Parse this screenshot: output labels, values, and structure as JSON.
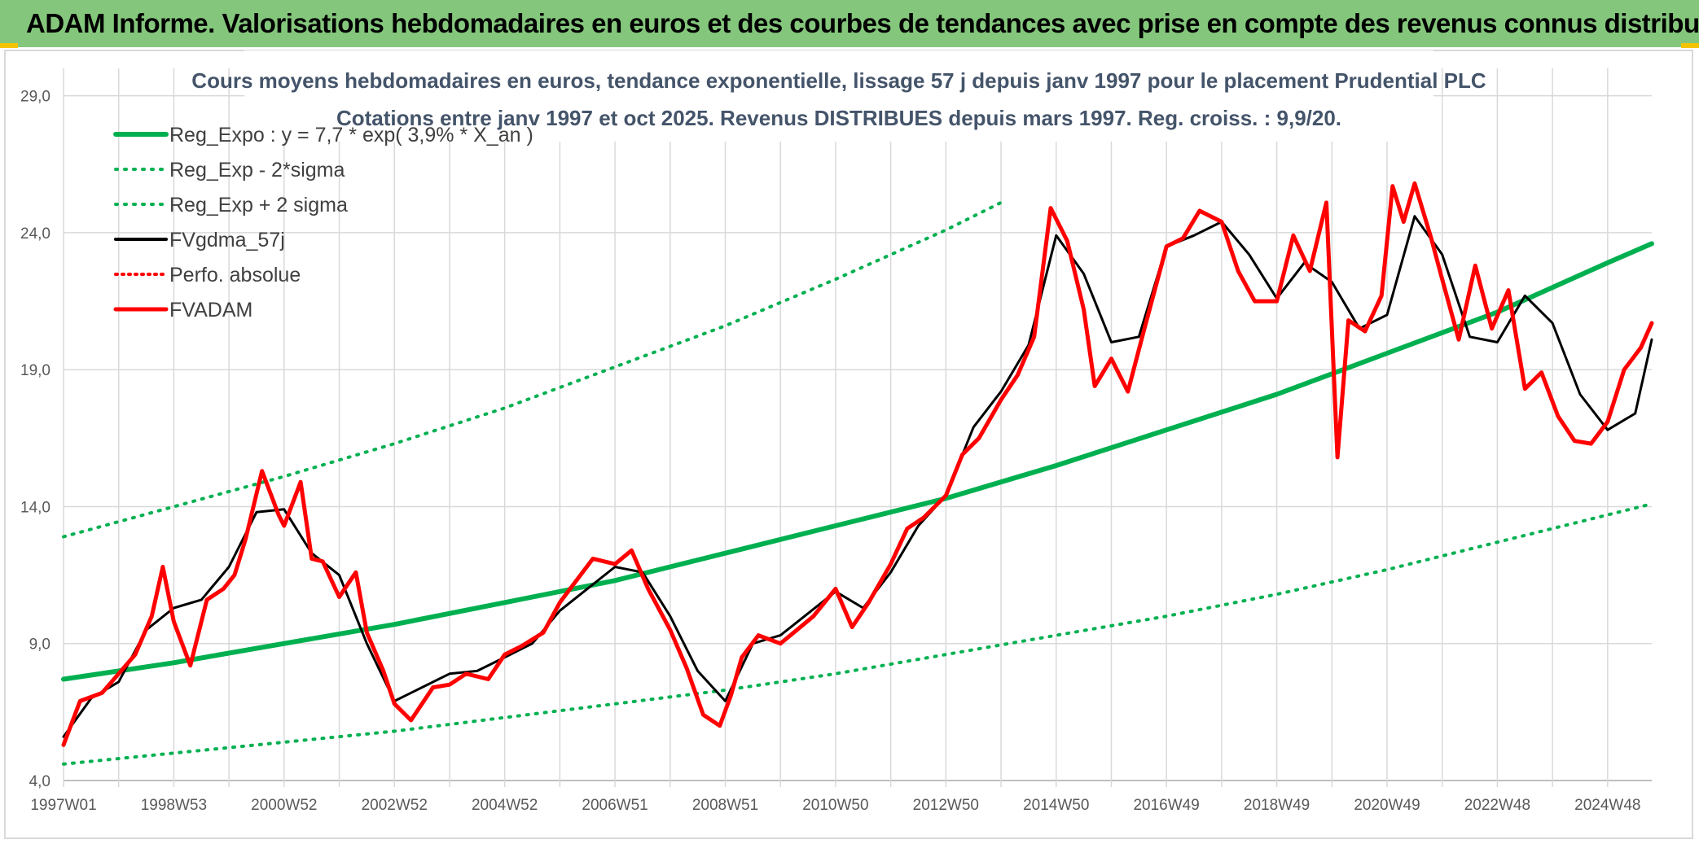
{
  "header": {
    "title": "ADAM Informe. Valorisations hebdomadaires en euros et des courbes de tendances avec prise en compte des revenus connus distribués"
  },
  "chart_data": {
    "type": "line",
    "title_lines": [
      "Cours moyens hebdomadaires en euros, tendance exponentielle, lissage 57 j depuis janv 1997 pour le placement Prudential PLC",
      "Cotations entre janv 1997 et oct 2025. Revenus DISTRIBUES depuis mars 1997. Reg. croiss. : 9,9/20."
    ],
    "xlabel": "",
    "ylabel": "",
    "ylim": [
      4,
      30
    ],
    "xlim": [
      1997.0,
      2025.8
    ],
    "yticks": [
      {
        "value": 4,
        "label": "4,0"
      },
      {
        "value": 9,
        "label": "9,0"
      },
      {
        "value": 14,
        "label": "14,0"
      },
      {
        "value": 19,
        "label": "19,0"
      },
      {
        "value": 24,
        "label": "24,0"
      },
      {
        "value": 29,
        "label": "29,0"
      }
    ],
    "xticks": [
      {
        "value": 1997.0,
        "label": "1997W01"
      },
      {
        "value": 1999.0,
        "label": "1998W53"
      },
      {
        "value": 2001.0,
        "label": "2000W52"
      },
      {
        "value": 2003.0,
        "label": "2002W52"
      },
      {
        "value": 2005.0,
        "label": "2004W52"
      },
      {
        "value": 2007.0,
        "label": "2006W51"
      },
      {
        "value": 2009.0,
        "label": "2008W51"
      },
      {
        "value": 2011.0,
        "label": "2010W50"
      },
      {
        "value": 2013.0,
        "label": "2012W50"
      },
      {
        "value": 2015.0,
        "label": "2014W50"
      },
      {
        "value": 2017.0,
        "label": "2016W49"
      },
      {
        "value": 2019.0,
        "label": "2018W49"
      },
      {
        "value": 2021.0,
        "label": "2020W49"
      },
      {
        "value": 2023.0,
        "label": "2022W48"
      },
      {
        "value": 2025.0,
        "label": "2024W48"
      }
    ],
    "legend_position": "top-left",
    "regression": {
      "a": 7.7,
      "rate": 0.039,
      "x0": 1997.0
    },
    "series": [
      {
        "name": "Reg_Expo : y = 7,7 * exp( 3,9% *  X_an )",
        "color": "#00b050",
        "style": "solid",
        "width": 6,
        "x": [
          1997.0,
          1999.0,
          2001.0,
          2003.0,
          2005.0,
          2007.0,
          2009.0,
          2011.0,
          2013.0,
          2015.0,
          2017.0,
          2019.0,
          2021.0,
          2023.0,
          2025.0,
          2025.8
        ],
        "values": [
          7.7,
          8.3,
          9.0,
          9.7,
          10.5,
          11.3,
          12.3,
          13.3,
          14.3,
          15.5,
          16.8,
          18.1,
          19.6,
          21.1,
          22.9,
          23.6
        ]
      },
      {
        "name": "Reg_Exp - 2*sigma",
        "color": "#00b050",
        "style": "dotted",
        "width": 4,
        "x": [
          1997.0,
          1999.0,
          2001.0,
          2003.0,
          2005.0,
          2007.0,
          2009.0,
          2011.0,
          2013.0,
          2015.0,
          2017.0,
          2019.0,
          2021.0,
          2023.0,
          2025.0,
          2025.8
        ],
        "values": [
          4.6,
          5.0,
          5.4,
          5.8,
          6.3,
          6.8,
          7.3,
          7.9,
          8.6,
          9.3,
          10.0,
          10.8,
          11.7,
          12.7,
          13.7,
          14.1
        ]
      },
      {
        "name": "Reg_Exp + 2 sigma",
        "color": "#00b050",
        "style": "dotted",
        "width": 4,
        "x": [
          1997.0,
          1999.0,
          2001.0,
          2003.0,
          2005.0,
          2007.0,
          2009.0,
          2011.0,
          2013.0,
          2014.0
        ],
        "values": [
          12.9,
          14.0,
          15.1,
          16.3,
          17.6,
          19.1,
          20.6,
          22.3,
          24.1,
          25.1
        ]
      },
      {
        "name": "FVgdma_57j",
        "color": "#000000",
        "style": "solid",
        "width": 3,
        "x": [
          1997.0,
          1997.5,
          1998.0,
          1998.5,
          1999.0,
          1999.5,
          2000.0,
          2000.5,
          2001.0,
          2001.5,
          2002.0,
          2002.5,
          2003.0,
          2003.5,
          2004.0,
          2004.5,
          2005.0,
          2005.5,
          2006.0,
          2006.5,
          2007.0,
          2007.5,
          2008.0,
          2008.5,
          2009.0,
          2009.5,
          2010.0,
          2010.5,
          2011.0,
          2011.5,
          2012.0,
          2012.5,
          2013.0,
          2013.5,
          2014.0,
          2014.5,
          2015.0,
          2015.5,
          2016.0,
          2016.5,
          2017.0,
          2017.5,
          2018.0,
          2018.5,
          2019.0,
          2019.5,
          2020.0,
          2020.5,
          2021.0,
          2021.5,
          2022.0,
          2022.5,
          2023.0,
          2023.5,
          2024.0,
          2024.5,
          2025.0,
          2025.5,
          2025.8
        ],
        "values": [
          5.6,
          7.0,
          7.6,
          9.5,
          10.3,
          10.6,
          11.8,
          13.8,
          13.9,
          12.3,
          11.5,
          9.0,
          6.9,
          7.4,
          7.9,
          8.0,
          8.5,
          9.0,
          10.2,
          11.0,
          11.8,
          11.6,
          10.0,
          8.0,
          6.9,
          9.0,
          9.3,
          10.1,
          10.9,
          10.3,
          11.6,
          13.3,
          14.4,
          16.9,
          18.2,
          19.9,
          23.9,
          22.5,
          20.0,
          20.2,
          23.5,
          23.9,
          24.4,
          23.2,
          21.6,
          22.9,
          22.2,
          20.5,
          21.0,
          24.6,
          23.2,
          20.2,
          20.0,
          21.7,
          20.7,
          18.1,
          16.8,
          17.4,
          20.1
        ]
      },
      {
        "name": "Perfo. absolue",
        "color": "#ff0000",
        "style": "dotted",
        "width": 3,
        "x": [],
        "values": []
      },
      {
        "name": "FVADAM",
        "color": "#ff0000",
        "style": "solid",
        "width": 5,
        "x": [
          1997.0,
          1997.3,
          1997.7,
          1998.0,
          1998.3,
          1998.6,
          1998.8,
          1999.0,
          1999.3,
          1999.6,
          1999.9,
          2000.1,
          2000.3,
          2000.6,
          2000.9,
          2001.0,
          2001.3,
          2001.5,
          2001.7,
          2002.0,
          2002.3,
          2002.5,
          2002.8,
          2003.0,
          2003.3,
          2003.7,
          2004.0,
          2004.3,
          2004.7,
          2005.0,
          2005.3,
          2005.7,
          2006.0,
          2006.3,
          2006.6,
          2007.0,
          2007.3,
          2007.6,
          2008.0,
          2008.3,
          2008.6,
          2008.9,
          2009.1,
          2009.3,
          2009.6,
          2010.0,
          2010.3,
          2010.6,
          2011.0,
          2011.3,
          2011.6,
          2012.0,
          2012.3,
          2012.6,
          2013.0,
          2013.3,
          2013.6,
          2014.0,
          2014.3,
          2014.6,
          2014.9,
          2015.2,
          2015.5,
          2015.7,
          2016.0,
          2016.3,
          2016.6,
          2017.0,
          2017.3,
          2017.6,
          2018.0,
          2018.3,
          2018.6,
          2019.0,
          2019.3,
          2019.6,
          2019.9,
          2020.1,
          2020.3,
          2020.6,
          2020.9,
          2021.1,
          2021.3,
          2021.5,
          2021.8,
          2022.0,
          2022.3,
          2022.6,
          2022.9,
          2023.2,
          2023.5,
          2023.8,
          2024.1,
          2024.4,
          2024.7,
          2025.0,
          2025.3,
          2025.6,
          2025.8
        ],
        "values": [
          5.3,
          6.9,
          7.2,
          7.9,
          8.6,
          10.0,
          11.8,
          9.8,
          8.2,
          10.6,
          11.0,
          11.5,
          12.8,
          15.3,
          13.7,
          13.3,
          14.9,
          12.1,
          12.0,
          10.7,
          11.6,
          9.4,
          8.0,
          6.8,
          6.2,
          7.4,
          7.5,
          7.9,
          7.7,
          8.6,
          8.9,
          9.4,
          10.5,
          11.3,
          12.1,
          11.9,
          12.4,
          11.0,
          9.5,
          8.1,
          6.4,
          6.0,
          7.1,
          8.5,
          9.3,
          9.0,
          9.5,
          10.0,
          11.0,
          9.6,
          10.5,
          11.9,
          13.2,
          13.6,
          14.4,
          15.9,
          16.5,
          17.9,
          18.8,
          20.2,
          24.9,
          23.7,
          21.2,
          18.4,
          19.4,
          18.2,
          20.5,
          23.5,
          23.8,
          24.8,
          24.4,
          22.6,
          21.5,
          21.5,
          23.9,
          22.6,
          25.1,
          15.8,
          20.8,
          20.4,
          21.7,
          25.7,
          24.4,
          25.8,
          23.8,
          22.3,
          20.1,
          22.8,
          20.5,
          21.9,
          18.3,
          18.9,
          17.3,
          16.4,
          16.3,
          17.1,
          19.0,
          19.8,
          20.7
        ]
      }
    ]
  }
}
